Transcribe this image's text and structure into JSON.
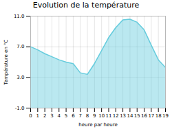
{
  "chart_data": {
    "type": "area",
    "title": "Evolution de la température",
    "xlabel": "heure par heure",
    "ylabel": "Température en °C",
    "x": [
      0,
      1,
      2,
      3,
      4,
      5,
      6,
      7,
      8,
      9,
      10,
      11,
      12,
      13,
      14,
      15,
      16,
      17,
      18,
      19
    ],
    "values": [
      7.0,
      6.6,
      6.1,
      5.7,
      5.3,
      5.0,
      4.8,
      3.6,
      3.4,
      4.8,
      6.5,
      8.2,
      9.5,
      10.5,
      10.6,
      10.2,
      9.2,
      7.2,
      5.3,
      4.3
    ],
    "color": "#66ccdd",
    "xlim": [
      0,
      19
    ],
    "ylim": [
      -1.0,
      11.0
    ],
    "xticks": [
      0,
      1,
      2,
      3,
      4,
      5,
      6,
      7,
      8,
      9,
      10,
      11,
      12,
      13,
      14,
      15,
      16,
      17,
      18,
      19
    ],
    "yticks": [
      {
        "value": -1.0,
        "label": "-1.0"
      },
      {
        "value": 3.0,
        "label": "3.0"
      },
      {
        "value": 7.0,
        "label": "7.0"
      },
      {
        "value": 11.0,
        "label": "11.0"
      }
    ],
    "grid": true
  }
}
